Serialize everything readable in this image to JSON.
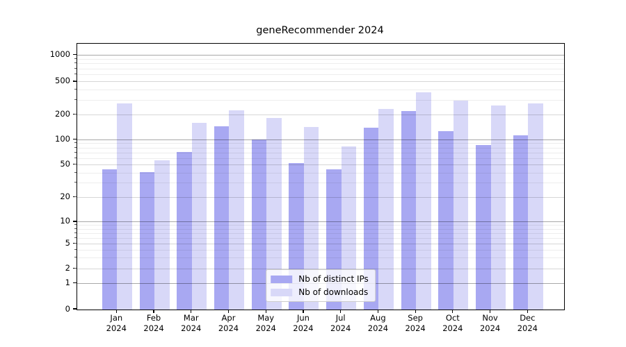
{
  "title": "geneRecommender 2024",
  "legend": {
    "items": [
      {
        "label": "Nb of distinct IPs",
        "color": "#a8a8f2"
      },
      {
        "label": "Nb of downloads",
        "color": "#d8d8f8"
      }
    ]
  },
  "chart_data": {
    "type": "bar",
    "title": "geneRecommender 2024",
    "categories": [
      "Jan",
      "Feb",
      "Mar",
      "Apr",
      "May",
      "Jun",
      "Jul",
      "Aug",
      "Sep",
      "Oct",
      "Nov",
      "Dec"
    ],
    "year_label": "2024",
    "series": [
      {
        "name": "Nb of distinct IPs",
        "color": "#a8a8f2",
        "values": [
          44,
          41,
          72,
          146,
          100,
          53,
          44,
          141,
          222,
          126,
          87,
          112
        ]
      },
      {
        "name": "Nb of downloads",
        "color": "#d8d8f8",
        "values": [
          277,
          57,
          160,
          227,
          184,
          143,
          83,
          235,
          375,
          295,
          261,
          277
        ]
      }
    ],
    "xlabel": "",
    "ylabel": "",
    "yscale": "symlog",
    "yticks": [
      0,
      1,
      2,
      5,
      10,
      20,
      50,
      100,
      200,
      500,
      1000
    ],
    "ylim": [
      0,
      1400
    ],
    "grid": true,
    "legend_position": "lower center"
  }
}
